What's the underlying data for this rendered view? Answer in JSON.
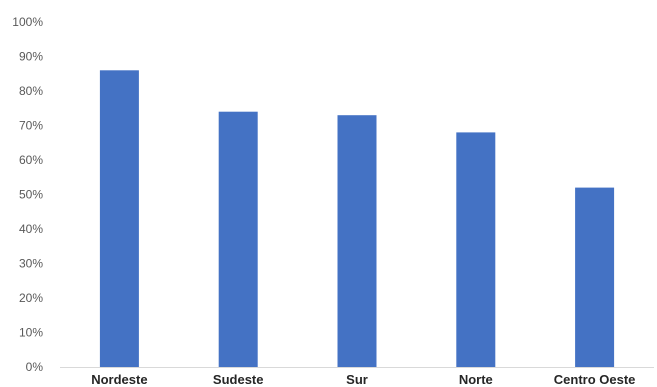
{
  "chart_data": {
    "type": "bar",
    "categories": [
      "Nordeste",
      "Sudeste",
      "Sur",
      "Norte",
      "Centro Oeste"
    ],
    "values": [
      86,
      74,
      73,
      68,
      52
    ],
    "ylim": [
      0,
      100
    ],
    "yticks": [
      "0%",
      "10%",
      "20%",
      "30%",
      "40%",
      "50%",
      "60%",
      "70%",
      "80%",
      "90%",
      "100%"
    ],
    "bar_color": "#4472C4",
    "axis_color": "#D9D9D9",
    "grid": false,
    "legend": "none"
  }
}
